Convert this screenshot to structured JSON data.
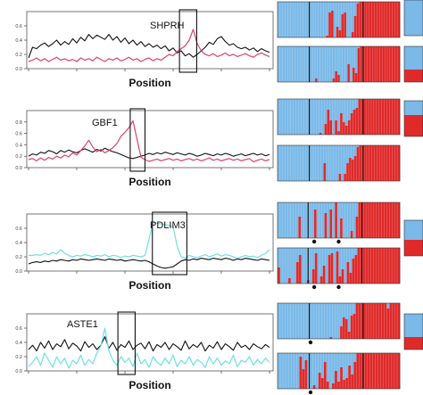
{
  "colors": {
    "blue": "#7ab9e8",
    "red": "#e02a2a",
    "pink": "#e0426a",
    "cyan": "#6fe0e6",
    "black": "#111111"
  },
  "chart_data": [
    {
      "type": "line",
      "gene": "SHPRH",
      "xlabel": "Position",
      "yticks": [
        "0.0",
        "0.2",
        "0.4",
        "0.6"
      ],
      "ylim": [
        0,
        0.8
      ],
      "highlight": [
        0.62,
        0.69
      ],
      "series": [
        {
          "color": "black",
          "values": [
            0.15,
            0.3,
            0.28,
            0.33,
            0.36,
            0.31,
            0.35,
            0.4,
            0.33,
            0.38,
            0.34,
            0.42,
            0.36,
            0.44,
            0.39,
            0.48,
            0.42,
            0.47,
            0.44,
            0.41,
            0.48,
            0.4,
            0.45,
            0.37,
            0.43,
            0.35,
            0.4,
            0.33,
            0.38,
            0.31,
            0.35,
            0.3,
            0.33,
            0.28,
            0.32,
            0.25,
            0.29,
            0.22,
            0.25,
            0.18,
            0.21,
            0.16,
            0.2,
            0.25,
            0.3,
            0.37,
            0.34,
            0.42,
            0.45,
            0.38,
            0.33,
            0.35,
            0.3,
            0.28,
            0.3,
            0.26,
            0.29,
            0.24,
            0.28,
            0.25,
            0.23
          ]
        },
        {
          "color": "pink",
          "values": [
            0.1,
            0.12,
            0.15,
            0.11,
            0.14,
            0.1,
            0.13,
            0.16,
            0.12,
            0.14,
            0.11,
            0.13,
            0.1,
            0.15,
            0.12,
            0.14,
            0.11,
            0.16,
            0.13,
            0.1,
            0.14,
            0.12,
            0.15,
            0.11,
            0.13,
            0.16,
            0.12,
            0.14,
            0.1,
            0.13,
            0.15,
            0.11,
            0.14,
            0.12,
            0.16,
            0.2,
            0.18,
            0.24,
            0.28,
            0.32,
            0.4,
            0.55,
            0.35,
            0.25,
            0.2,
            0.18,
            0.21,
            0.17,
            0.19,
            0.22,
            0.18,
            0.2,
            0.17,
            0.19,
            0.21,
            0.18,
            0.16,
            0.2,
            0.22,
            0.19,
            0.17
          ]
        }
      ]
    },
    {
      "type": "line",
      "gene": "GBF1",
      "xlabel": "Position",
      "yticks": [
        "0.0",
        "0.2",
        "0.4",
        "0.6",
        "0.8"
      ],
      "ylim": [
        0,
        1.0
      ],
      "highlight": [
        0.42,
        0.48
      ],
      "series": [
        {
          "color": "black",
          "values": [
            0.2,
            0.24,
            0.22,
            0.27,
            0.25,
            0.3,
            0.28,
            0.24,
            0.3,
            0.27,
            0.31,
            0.28,
            0.26,
            0.3,
            0.33,
            0.3,
            0.27,
            0.32,
            0.29,
            0.34,
            0.31,
            0.28,
            0.26,
            0.23,
            0.2,
            0.17,
            0.16,
            0.18,
            0.2,
            0.22,
            0.25,
            0.23,
            0.26,
            0.24,
            0.27,
            0.25,
            0.23,
            0.26,
            0.24,
            0.22,
            0.25,
            0.23,
            0.2,
            0.22,
            0.25,
            0.23,
            0.21,
            0.24,
            0.22,
            0.25,
            0.23,
            0.2,
            0.22,
            0.24,
            0.21,
            0.23,
            0.25,
            0.22,
            0.24,
            0.21,
            0.23
          ]
        },
        {
          "color": "pink",
          "values": [
            0.14,
            0.16,
            0.12,
            0.17,
            0.13,
            0.18,
            0.15,
            0.2,
            0.17,
            0.22,
            0.19,
            0.26,
            0.22,
            0.3,
            0.38,
            0.48,
            0.36,
            0.28,
            0.32,
            0.26,
            0.3,
            0.35,
            0.42,
            0.55,
            0.62,
            0.7,
            0.82,
            0.5,
            0.18,
            0.14,
            0.11,
            0.13,
            0.15,
            0.12,
            0.14,
            0.16,
            0.13,
            0.15,
            0.12,
            0.14,
            0.16,
            0.13,
            0.15,
            0.12,
            0.14,
            0.17,
            0.13,
            0.15,
            0.12,
            0.14,
            0.16,
            0.13,
            0.15,
            0.12,
            0.14,
            0.16,
            0.1,
            0.13,
            0.15,
            0.12,
            0.14
          ]
        }
      ]
    },
    {
      "type": "line",
      "gene": "PDLIM3",
      "xlabel": "Position",
      "yticks": [
        "0.0",
        "0.2",
        "0.4",
        "0.6"
      ],
      "ylim": [
        0,
        0.8
      ],
      "highlight": [
        0.51,
        0.65
      ],
      "series": [
        {
          "color": "black",
          "values": [
            0.1,
            0.12,
            0.13,
            0.12,
            0.14,
            0.13,
            0.15,
            0.14,
            0.16,
            0.15,
            0.14,
            0.16,
            0.15,
            0.17,
            0.16,
            0.15,
            0.16,
            0.17,
            0.16,
            0.15,
            0.17,
            0.16,
            0.15,
            0.16,
            0.14,
            0.15,
            0.16,
            0.15,
            0.14,
            0.15,
            0.13,
            0.1,
            0.07,
            0.05,
            0.04,
            0.05,
            0.06,
            0.1,
            0.14,
            0.16,
            0.15,
            0.17,
            0.16,
            0.18,
            0.17,
            0.16,
            0.18,
            0.17,
            0.16,
            0.18,
            0.17,
            0.15,
            0.17,
            0.16,
            0.18,
            0.17,
            0.16,
            0.15,
            0.17,
            0.16,
            0.15
          ]
        },
        {
          "color": "cyan",
          "values": [
            0.22,
            0.22,
            0.23,
            0.22,
            0.25,
            0.23,
            0.26,
            0.24,
            0.3,
            0.25,
            0.22,
            0.2,
            0.22,
            0.21,
            0.23,
            0.22,
            0.2,
            0.22,
            0.21,
            0.23,
            0.2,
            0.22,
            0.21,
            0.19,
            0.21,
            0.2,
            0.22,
            0.21,
            0.2,
            0.22,
            0.45,
            0.68,
            0.67,
            0.66,
            0.65,
            0.64,
            0.62,
            0.35,
            0.2,
            0.18,
            0.22,
            0.2,
            0.19,
            0.21,
            0.23,
            0.2,
            0.22,
            0.24,
            0.21,
            0.23,
            0.22,
            0.2,
            0.18,
            0.2,
            0.22,
            0.2,
            0.21,
            0.19,
            0.22,
            0.25,
            0.3
          ]
        }
      ]
    },
    {
      "type": "line",
      "gene": "ASTE1",
      "xlabel": "Position",
      "yticks": [
        "0.0",
        "0.2",
        "0.4",
        "0.6"
      ],
      "ylim": [
        0,
        0.8
      ],
      "highlight": [
        0.37,
        0.44
      ],
      "series": [
        {
          "color": "black",
          "values": [
            0.3,
            0.36,
            0.28,
            0.4,
            0.32,
            0.42,
            0.3,
            0.38,
            0.34,
            0.44,
            0.31,
            0.39,
            0.35,
            0.28,
            0.41,
            0.33,
            0.38,
            0.3,
            0.36,
            0.48,
            0.32,
            0.4,
            0.29,
            0.37,
            0.33,
            0.42,
            0.3,
            0.36,
            0.39,
            0.31,
            0.41,
            0.28,
            0.37,
            0.33,
            0.4,
            0.3,
            0.38,
            0.34,
            0.29,
            0.42,
            0.31,
            0.37,
            0.33,
            0.4,
            0.28,
            0.36,
            0.32,
            0.41,
            0.3,
            0.38,
            0.34,
            0.29,
            0.4,
            0.33,
            0.36,
            0.3,
            0.38,
            0.34,
            0.31,
            0.37,
            0.33
          ]
        },
        {
          "color": "cyan",
          "values": [
            0.06,
            0.12,
            0.2,
            0.08,
            0.25,
            0.15,
            0.05,
            0.2,
            0.1,
            0.18,
            0.04,
            0.15,
            0.1,
            0.22,
            0.08,
            0.16,
            0.1,
            0.25,
            0.35,
            0.6,
            0.28,
            0.15,
            0.08,
            0.2,
            0.12,
            0.18,
            0.06,
            0.25,
            0.1,
            0.16,
            0.05,
            0.2,
            0.12,
            0.08,
            0.18,
            0.1,
            0.22,
            0.06,
            0.15,
            0.1,
            0.2,
            0.08,
            0.16,
            0.12,
            0.05,
            0.2,
            0.1,
            0.18,
            0.08,
            0.14,
            0.1,
            0.22,
            0.06,
            0.15,
            0.12,
            0.2,
            0.08,
            0.16,
            0.1,
            0.18,
            0.12
          ]
        }
      ]
    }
  ],
  "structure_data": [
    {
      "rows": [
        {
          "values": [
            0,
            0,
            0,
            0,
            0,
            0,
            0,
            0,
            0,
            0,
            0,
            0,
            0,
            0,
            0,
            0,
            0,
            0,
            0,
            0.05,
            0.7,
            0.75,
            0,
            0.3,
            0.2,
            0.65,
            0.7,
            0,
            0,
            0.15,
            0.6,
            0.95,
            1,
            1,
            1,
            1,
            1,
            1,
            1,
            1,
            1,
            1,
            1,
            1,
            1,
            1,
            1,
            1
          ]
        },
        {
          "values": [
            0,
            0,
            0,
            0,
            0,
            0,
            0,
            0,
            0,
            0,
            0,
            0,
            0,
            0,
            0,
            0.1,
            0,
            0,
            0,
            0,
            0,
            0,
            0.1,
            0.3,
            0.2,
            0,
            0,
            0,
            0.5,
            0,
            0.4,
            0.25,
            0.95,
            1,
            1,
            1,
            1,
            1,
            1,
            1,
            1,
            1,
            1,
            1,
            1,
            1,
            1,
            1,
            1
          ]
        }
      ],
      "side": [
        0.35,
        0
      ]
    },
    {
      "rows": [
        {
          "values": [
            0,
            0,
            0,
            0,
            0,
            0,
            0,
            0,
            0,
            0,
            0,
            0,
            0,
            0,
            0,
            0,
            0.05,
            0,
            0.3,
            0.7,
            0.4,
            0,
            0.4,
            0.1,
            0.6,
            0.35,
            0.25,
            0.4,
            0.6,
            0.7,
            0.75,
            1,
            1,
            1,
            1,
            1,
            1,
            1,
            1,
            1,
            1,
            1,
            1,
            1,
            1,
            1,
            1
          ]
        },
        {
          "values": [
            0,
            0,
            0,
            0,
            0,
            0,
            0,
            0,
            0,
            0,
            0,
            0,
            0,
            0,
            0,
            0,
            0,
            0,
            0.5,
            0,
            0,
            0,
            0,
            0,
            0.2,
            0,
            0.2,
            0.5,
            0.65,
            0.6,
            0.7,
            0.95,
            1,
            1,
            1,
            1,
            1,
            1,
            1,
            1,
            1,
            1,
            1,
            1,
            1,
            1,
            1,
            1
          ]
        }
      ],
      "side": [
        0.6
      ]
    },
    {
      "rows": [
        {
          "values": [
            0,
            0,
            0,
            0,
            0,
            0,
            0,
            0,
            0.6,
            0,
            0,
            0,
            0,
            0,
            0.8,
            0,
            0,
            0,
            0.7,
            0,
            0.8,
            0,
            1,
            0,
            0.55,
            0,
            0,
            0,
            0.2,
            0,
            0.6,
            1,
            1,
            1,
            1,
            1,
            1,
            1,
            1,
            1,
            1,
            1,
            1,
            1,
            1,
            1,
            1
          ]
        },
        {
          "values": [
            0.45,
            0,
            0,
            0,
            0.15,
            0,
            0,
            0.6,
            0.8,
            0,
            0,
            0.1,
            0,
            0.4,
            0.85,
            0,
            0.2,
            0.5,
            0,
            0.8,
            0.85,
            0,
            0.9,
            0.2,
            0.4,
            0,
            0.6,
            0.3,
            0.7,
            0.8,
            1,
            1,
            1,
            1,
            1,
            1,
            1,
            1,
            1,
            1,
            1,
            1,
            1,
            1,
            1,
            1
          ]
        }
      ],
      "side": [
        0.45
      ]
    },
    {
      "rows": [
        {
          "values": [
            0,
            0,
            0,
            0,
            0,
            0,
            0,
            0,
            0,
            0,
            0,
            0,
            0,
            0,
            0,
            0,
            0,
            0,
            0,
            0,
            0.05,
            0,
            0,
            0,
            0.35,
            0.6,
            0.55,
            0.2,
            0.65,
            0.7,
            1,
            1,
            1,
            1,
            1,
            1,
            1,
            1,
            1,
            1,
            1,
            1,
            0.85,
            1,
            1,
            1,
            1
          ]
        },
        {
          "values": [
            0,
            0,
            0,
            0,
            0,
            0,
            0,
            0,
            0.9,
            0.55,
            0.8,
            0,
            0,
            0.1,
            0,
            0.45,
            0.3,
            0.75,
            0.2,
            0,
            0.15,
            0.5,
            0.2,
            0.6,
            0.25,
            0.3,
            0.65,
            0.4,
            0.75,
            1,
            1,
            1,
            1,
            1,
            1,
            1,
            1,
            1,
            1,
            1,
            1,
            1,
            1,
            1,
            1
          ]
        }
      ],
      "side": [
        0.35
      ]
    }
  ]
}
